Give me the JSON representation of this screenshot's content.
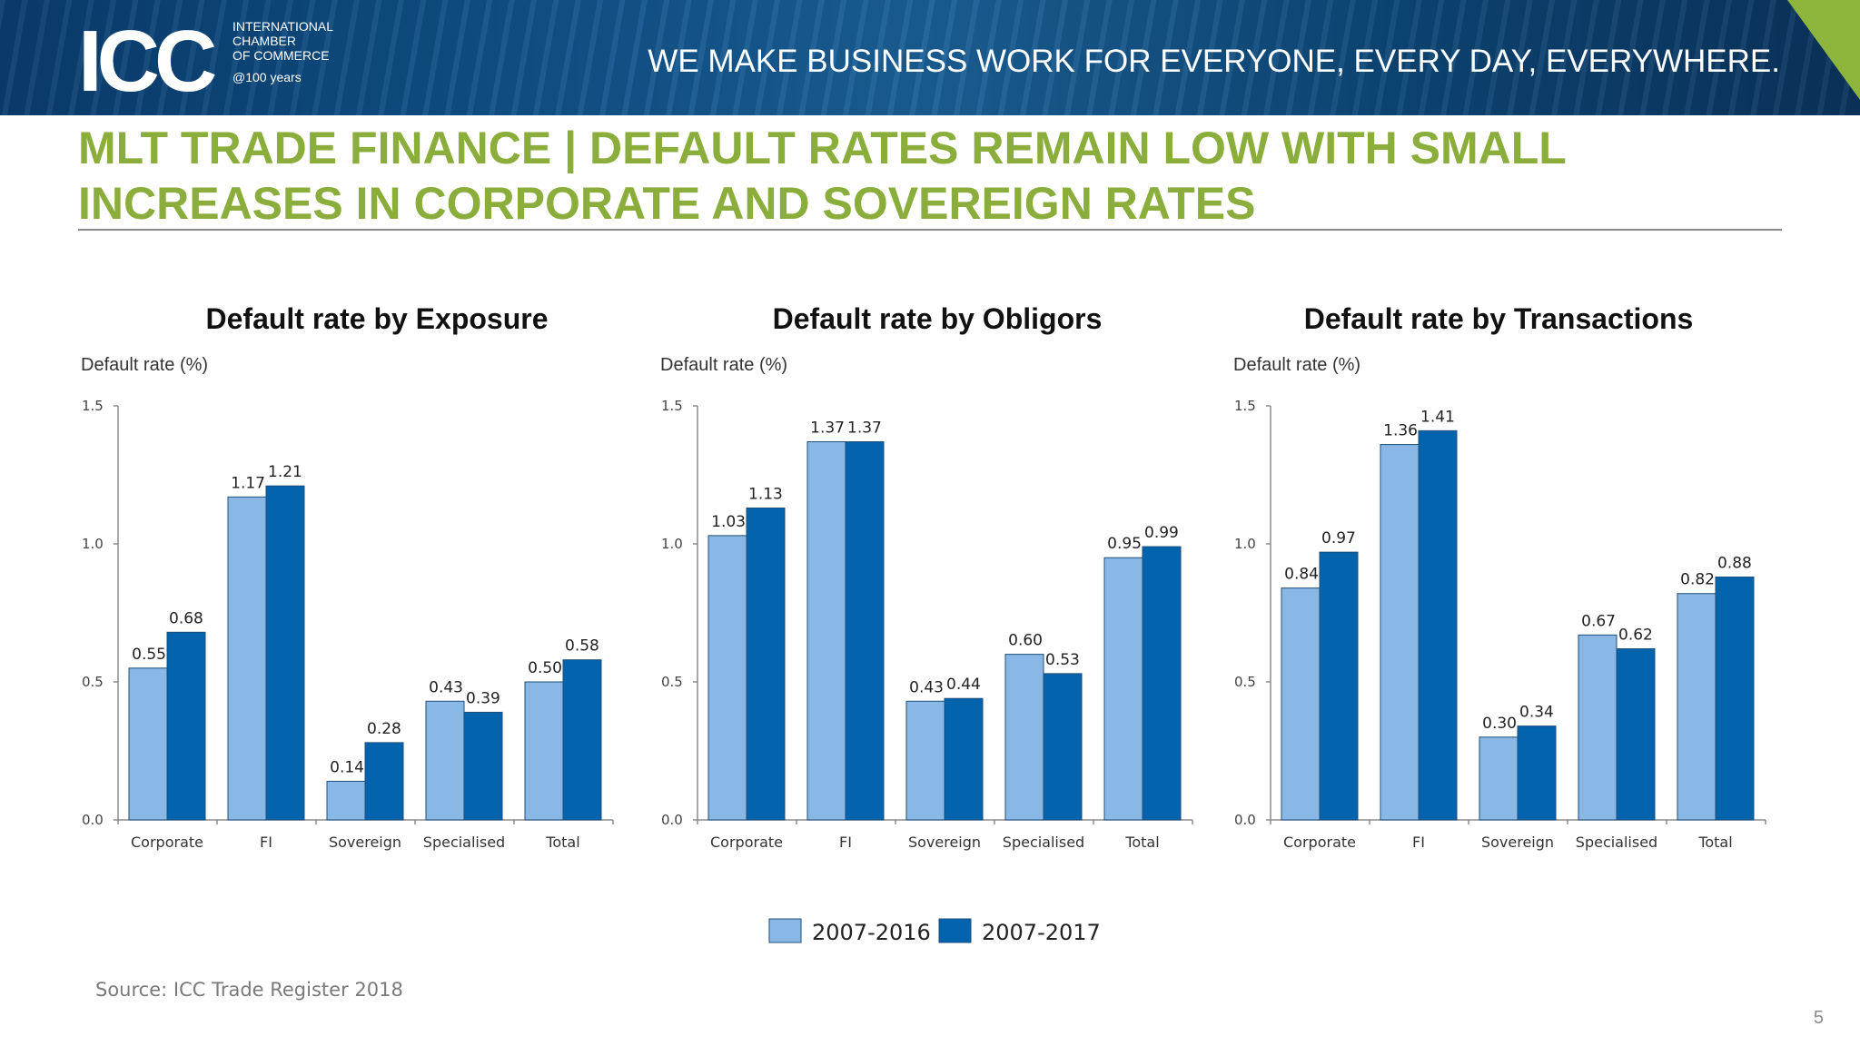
{
  "header": {
    "logo_text": "ICC",
    "org_line1": "INTERNATIONAL",
    "org_line2": "CHAMBER",
    "org_line3": "OF COMMERCE",
    "anniversary": "@100 years",
    "tagline": "WE MAKE BUSINESS WORK FOR EVERYONE, EVERY DAY, EVERYWHERE."
  },
  "title": {
    "line1": "MLT TRADE FINANCE | DEFAULT RATES REMAIN LOW WITH SMALL",
    "line2": "INCREASES IN CORPORATE AND SOVEREIGN RATES"
  },
  "colors": {
    "series1": "#8ab8e6",
    "series2": "#0463ad",
    "title_green": "#8aad3c"
  },
  "legend": [
    "2007-2016",
    "2007-2017"
  ],
  "chart_data": [
    {
      "type": "bar",
      "title": "Default rate by Exposure",
      "ylabel": "Default rate (%)",
      "xlabel": "",
      "ylim": [
        0,
        1.5
      ],
      "yticks": [
        "0.0",
        "0.5",
        "1.0",
        "1.5"
      ],
      "categories": [
        "Corporate",
        "FI",
        "Sovereign",
        "Specialised",
        "Total"
      ],
      "series": [
        {
          "name": "2007-2016",
          "values": [
            0.55,
            1.17,
            0.14,
            0.43,
            0.5
          ],
          "labels": [
            "0.55",
            "1.17",
            "0.14",
            "0.43",
            "0.50"
          ]
        },
        {
          "name": "2007-2017",
          "values": [
            0.68,
            1.21,
            0.28,
            0.39,
            0.58
          ],
          "labels": [
            "0.68",
            "1.21",
            "0.28",
            "0.39",
            "0.58"
          ]
        }
      ]
    },
    {
      "type": "bar",
      "title": "Default rate by Obligors",
      "ylabel": "Default rate (%)",
      "xlabel": "",
      "ylim": [
        0,
        1.5
      ],
      "yticks": [
        "0.0",
        "0.5",
        "1.0",
        "1.5"
      ],
      "categories": [
        "Corporate",
        "FI",
        "Sovereign",
        "Specialised",
        "Total"
      ],
      "series": [
        {
          "name": "2007-2016",
          "values": [
            1.03,
            1.37,
            0.43,
            0.6,
            0.95
          ],
          "labels": [
            "1.03",
            "1.37",
            "0.43",
            "0.60",
            "0.95"
          ]
        },
        {
          "name": "2007-2017",
          "values": [
            1.13,
            1.37,
            0.44,
            0.53,
            0.99
          ],
          "labels": [
            "1.13",
            "1.37",
            "0.44",
            "0.53",
            "0.99"
          ]
        }
      ]
    },
    {
      "type": "bar",
      "title": "Default rate by Transactions",
      "ylabel": "Default rate (%)",
      "xlabel": "",
      "ylim": [
        0,
        1.5
      ],
      "yticks": [
        "0.0",
        "0.5",
        "1.0",
        "1.5"
      ],
      "categories": [
        "Corporate",
        "FI",
        "Sovereign",
        "Specialised",
        "Total"
      ],
      "series": [
        {
          "name": "2007-2016",
          "values": [
            0.84,
            1.36,
            0.3,
            0.67,
            0.82
          ],
          "labels": [
            "0.84",
            "1.36",
            "0.30",
            "0.67",
            "0.82"
          ]
        },
        {
          "name": "2007-2017",
          "values": [
            0.97,
            1.41,
            0.34,
            0.62,
            0.88
          ],
          "labels": [
            "0.97",
            "1.41",
            "0.34",
            "0.62",
            "0.88"
          ]
        }
      ]
    }
  ],
  "footer": {
    "source": "Source: ICC Trade Register 2018",
    "page_number": "5"
  }
}
